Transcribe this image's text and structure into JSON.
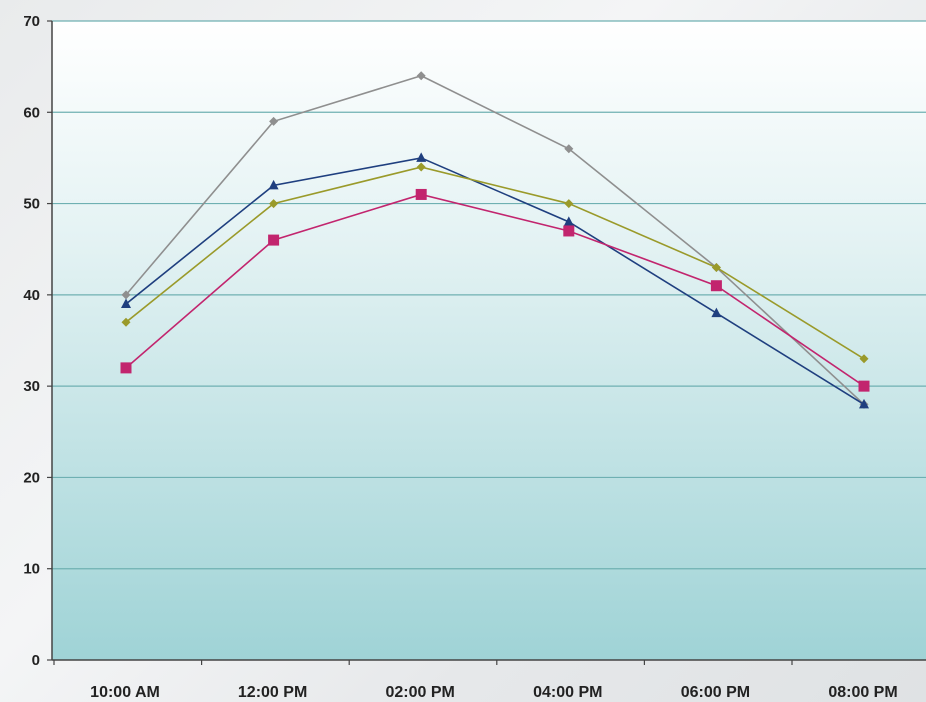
{
  "chart_data": {
    "type": "line",
    "title": "",
    "xlabel": "",
    "ylabel": "",
    "categories": [
      "10:00 AM",
      "12:00 PM",
      "02:00 PM",
      "04:00 PM",
      "06:00 PM",
      "08:00 PM"
    ],
    "ylim": [
      0,
      70
    ],
    "yticks": [
      0,
      10,
      20,
      30,
      40,
      50,
      60,
      70
    ],
    "grid": true,
    "legend": "none",
    "series": [
      {
        "values": [
          40,
          59,
          64,
          56,
          43,
          28
        ],
        "color": "#8f8f8f",
        "marker": "diamond"
      },
      {
        "values": [
          39,
          52,
          55,
          48,
          38,
          28
        ],
        "color": "#1f3f7f",
        "marker": "triangle"
      },
      {
        "values": [
          37,
          50,
          54,
          50,
          43,
          33
        ],
        "color": "#9a9a2a",
        "marker": "diamond"
      },
      {
        "values": [
          32,
          46,
          51,
          47,
          41,
          30
        ],
        "color": "#c2256e",
        "marker": "square"
      }
    ],
    "colors": {
      "plot_top": "#ffffff",
      "plot_bottom": "#9fd3d6",
      "gridline": "#6fb0b2",
      "axis": "#444444"
    }
  }
}
